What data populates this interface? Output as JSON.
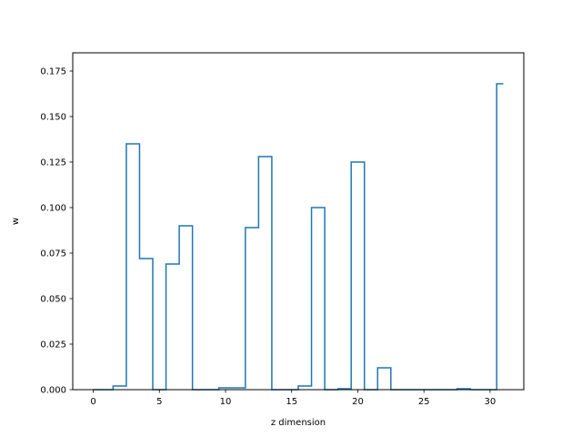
{
  "chart_data": {
    "type": "line",
    "drawstyle": "steps-mid",
    "xlabel": "z dimension",
    "ylabel": "w",
    "xlim": [
      -1.55,
      32.55
    ],
    "ylim": [
      0.0,
      0.185
    ],
    "xticks": [
      0,
      5,
      10,
      15,
      20,
      25,
      30
    ],
    "yticks": [
      0.0,
      0.025,
      0.05,
      0.075,
      0.1,
      0.125,
      0.15,
      0.175
    ],
    "xtick_labels": [
      "0",
      "5",
      "10",
      "15",
      "20",
      "25",
      "30"
    ],
    "ytick_labels": [
      "0.000",
      "0.025",
      "0.050",
      "0.075",
      "0.100",
      "0.125",
      "0.150",
      "0.175"
    ],
    "grid": false,
    "series": [
      {
        "color": "#1f77b4",
        "x": [
          0,
          1,
          2,
          3,
          4,
          5,
          6,
          7,
          8,
          9,
          10,
          11,
          12,
          13,
          14,
          15,
          16,
          17,
          18,
          19,
          20,
          21,
          22,
          23,
          24,
          25,
          26,
          27,
          28,
          29,
          30,
          31
        ],
        "y": [
          0.0,
          0.0,
          0.002,
          0.135,
          0.072,
          0.0,
          0.069,
          0.09,
          0.0,
          0.0,
          0.001,
          0.001,
          0.089,
          0.128,
          0.0,
          0.0,
          0.002,
          0.1,
          0.0,
          0.0005,
          0.125,
          0.0,
          0.012,
          0.0,
          0.0,
          0.0,
          0.0,
          0.0,
          0.0005,
          0.0,
          0.0,
          0.168
        ]
      }
    ]
  }
}
